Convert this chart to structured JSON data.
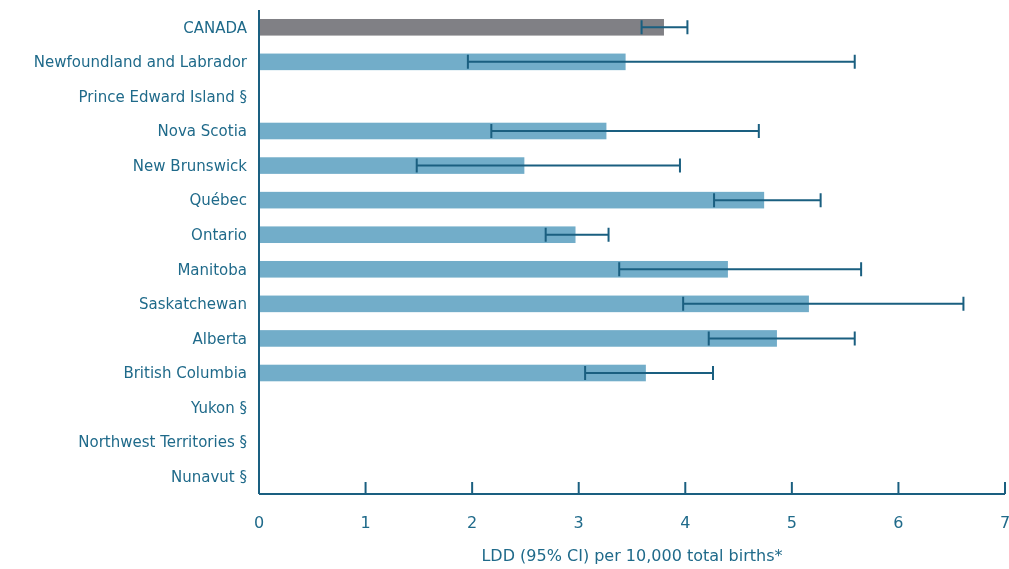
{
  "chart_data": {
    "type": "bar",
    "orientation": "horizontal",
    "xlabel": "LDD (95% CI) per 10,000 total births*",
    "categories": [
      "CANADA",
      "Newfoundland and Labrador",
      "Prince Edward Island §",
      "Nova Scotia",
      "New Brunswick",
      "Québec",
      "Ontario",
      "Manitoba",
      "Saskatchewan",
      "Alberta",
      "British Columbia",
      "Yukon §",
      "Northwest Territories §",
      "Nunavut §"
    ],
    "values": [
      3.8,
      3.44,
      null,
      3.26,
      2.49,
      4.74,
      2.97,
      4.4,
      5.16,
      4.86,
      3.63,
      null,
      null,
      null
    ],
    "colors": [
      "#808085",
      "#72adc9",
      null,
      "#72adc9",
      "#72adc9",
      "#72adc9",
      "#72adc9",
      "#72adc9",
      "#72adc9",
      "#72adc9",
      "#72adc9",
      null,
      null,
      null
    ],
    "errors": [
      [
        3.59,
        4.02
      ],
      [
        1.96,
        5.59
      ],
      null,
      [
        2.18,
        4.69
      ],
      [
        1.48,
        3.95
      ],
      [
        4.27,
        5.27
      ],
      [
        2.69,
        3.28
      ],
      [
        3.38,
        5.65
      ],
      [
        3.98,
        6.61
      ],
      [
        4.22,
        5.59
      ],
      [
        3.06,
        4.26
      ],
      null,
      null,
      null
    ],
    "xlim": [
      0,
      7
    ],
    "xticks": [
      0,
      1,
      2,
      3,
      4,
      5,
      6,
      7
    ],
    "grid": false
  }
}
